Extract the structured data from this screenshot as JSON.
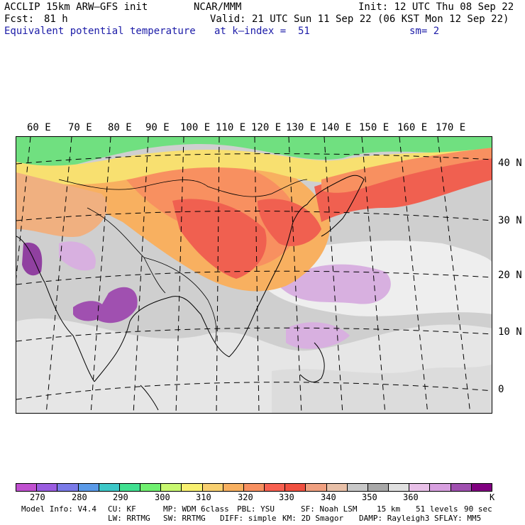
{
  "header": {
    "model": "ACCLIP 15km ARW–GFS init",
    "center": "NCAR/MMM",
    "init": "Init: 12 UTC Thu 08 Sep 22",
    "fcst_label": "Fcst:",
    "fcst_value": "81 h",
    "valid": "Valid: 21 UTC Sun 11 Sep 22 (06 KST Mon 12 Sep 22)",
    "field": "Equivalent potential temperature",
    "level": "at k–index =  51",
    "smooth": "sm= 2"
  },
  "map": {
    "lon_labels": [
      "60 E",
      "70 E",
      "80 E",
      "90 E",
      "100 E",
      "110 E",
      "120 E",
      "130 E",
      "140 E",
      "150 E",
      "160 E",
      "170 E"
    ],
    "lat_labels": [
      "40 N",
      "30 N",
      "20 N",
      "10 N",
      "0"
    ]
  },
  "colorbar": {
    "colors": [
      "#c050d0",
      "#9a5ce0",
      "#7a7ae8",
      "#5a9ae8",
      "#3cc8c8",
      "#40e090",
      "#70f070",
      "#c8f870",
      "#f8f070",
      "#f8d070",
      "#f8b060",
      "#f89060",
      "#f86050",
      "#f05040",
      "#f0a080",
      "#e8c0a8",
      "#c8c8c8",
      "#a8a8a8",
      "#e0e0e0",
      "#e8c0e8",
      "#d8a0e0",
      "#a050b0",
      "#800080"
    ],
    "ticks": [
      "270",
      "280",
      "290",
      "300",
      "310",
      "320",
      "330",
      "340",
      "350",
      "360",
      "K"
    ]
  },
  "footer": {
    "line1": [
      "Model Info: V4.4",
      "CU: KF",
      "MP: WDM 6class",
      "PBL: YSU",
      "SF: Noah LSM",
      "15 km",
      "51 levels",
      "90 sec"
    ],
    "line2": [
      "LW: RRTMG",
      "SW: RRTMG",
      "DIFF: simple",
      "KM: 2D Smagor",
      "DAMP: Rayleigh3",
      "SFLAY: MM5"
    ]
  }
}
